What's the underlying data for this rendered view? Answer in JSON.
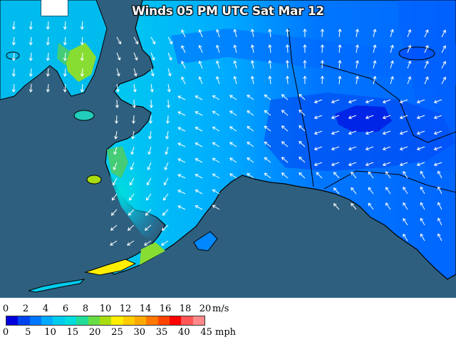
{
  "title": "Winds 05 PM UTC Sat Mar 12",
  "legend": {
    "ms_unit": "m/s",
    "mph_unit": "mph",
    "ms_ticks": [
      "0",
      "2",
      "4",
      "6",
      "8",
      "10",
      "12",
      "14",
      "16",
      "18",
      "20"
    ],
    "mph_ticks": [
      "0",
      "5",
      "10",
      "15",
      "20",
      "25",
      "30",
      "35",
      "40",
      "45"
    ],
    "colors": [
      "#0000dd",
      "#0044ee",
      "#0077ff",
      "#00aaff",
      "#00ccee",
      "#00dddd",
      "#22dd99",
      "#66dd44",
      "#aadd11",
      "#ffee00",
      "#ffcc00",
      "#ffaa00",
      "#ff7700",
      "#ff4400",
      "#ff0000",
      "#ff5555",
      "#ff8888"
    ]
  },
  "map": {
    "ocean_color": "#2e5f7f",
    "land_outline_color": "#000000",
    "wind_arrow_color": "#ffffff",
    "min_speed_color": "#0000dd",
    "max_speed_color": "#ffee00"
  }
}
